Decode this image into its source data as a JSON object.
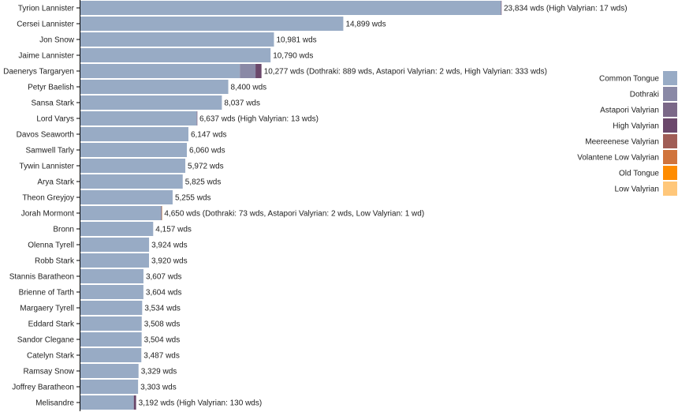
{
  "chart_data": {
    "type": "bar",
    "orientation": "horizontal",
    "stacked": true,
    "legend_position": "right",
    "unit_suffix": "wds",
    "xlim": [
      0,
      24800
    ],
    "categories": [
      "Tyrion Lannister",
      "Cersei Lannister",
      "Jon Snow",
      "Jaime Lannister",
      "Daenerys Targaryen",
      "Petyr Baelish",
      "Sansa Stark",
      "Lord Varys",
      "Davos Seaworth",
      "Samwell Tarly",
      "Tywin Lannister",
      "Arya Stark",
      "Theon Greyjoy",
      "Jorah Mormont",
      "Bronn",
      "Olenna Tyrell",
      "Robb Stark",
      "Stannis Baratheon",
      "Brienne of Tarth",
      "Margaery Tyrell",
      "Eddard Stark",
      "Sandor Clegane",
      "Catelyn Stark",
      "Ramsay Snow",
      "Joffrey Baratheon",
      "Melisandre"
    ],
    "series": [
      {
        "name": "Common Tongue",
        "color": "#98abc5",
        "values": [
          23817,
          14899,
          10981,
          10790,
          9053,
          8400,
          8037,
          6624,
          6147,
          6060,
          5972,
          5825,
          5255,
          4574,
          4157,
          3924,
          3920,
          3607,
          3604,
          3534,
          3508,
          3504,
          3487,
          3329,
          3303,
          3062
        ]
      },
      {
        "name": "Dothraki",
        "color": "#8a89a6",
        "values": [
          0,
          0,
          0,
          0,
          889,
          0,
          0,
          0,
          0,
          0,
          0,
          0,
          0,
          73,
          0,
          0,
          0,
          0,
          0,
          0,
          0,
          0,
          0,
          0,
          0,
          0
        ]
      },
      {
        "name": "Astapori Valyrian",
        "color": "#7b6888",
        "values": [
          0,
          0,
          0,
          0,
          2,
          0,
          0,
          0,
          0,
          0,
          0,
          0,
          0,
          2,
          0,
          0,
          0,
          0,
          0,
          0,
          0,
          0,
          0,
          0,
          0,
          0
        ]
      },
      {
        "name": "High Valyrian",
        "color": "#6b486b",
        "values": [
          17,
          0,
          0,
          0,
          333,
          0,
          0,
          13,
          0,
          0,
          0,
          0,
          0,
          0,
          0,
          0,
          0,
          0,
          0,
          0,
          0,
          0,
          0,
          0,
          0,
          130
        ]
      },
      {
        "name": "Meereenese Valyrian",
        "color": "#a05d56",
        "values": [
          0,
          0,
          0,
          0,
          0,
          0,
          0,
          0,
          0,
          0,
          0,
          0,
          0,
          0,
          0,
          0,
          0,
          0,
          0,
          0,
          0,
          0,
          0,
          0,
          0,
          0
        ]
      },
      {
        "name": "Volantene Low Valyrian",
        "color": "#d0743c",
        "values": [
          0,
          0,
          0,
          0,
          0,
          0,
          0,
          0,
          0,
          0,
          0,
          0,
          0,
          0,
          0,
          0,
          0,
          0,
          0,
          0,
          0,
          0,
          0,
          0,
          0,
          0
        ]
      },
      {
        "name": "Old Tongue",
        "color": "#ff8c00",
        "values": [
          0,
          0,
          0,
          0,
          0,
          0,
          0,
          0,
          0,
          0,
          0,
          0,
          0,
          0,
          0,
          0,
          0,
          0,
          0,
          0,
          0,
          0,
          0,
          0,
          0,
          0
        ]
      },
      {
        "name": "Low Valyrian",
        "color": "#ffc77a",
        "values": [
          0,
          0,
          0,
          0,
          0,
          0,
          0,
          0,
          0,
          0,
          0,
          0,
          0,
          1,
          0,
          0,
          0,
          0,
          0,
          0,
          0,
          0,
          0,
          0,
          0,
          0
        ]
      }
    ],
    "data_labels": [
      "23,834 wds (High Valyrian: 17 wds)",
      "14,899 wds",
      "10,981 wds",
      "10,790 wds",
      "10,277 wds (Dothraki: 889 wds, Astapori Valyrian: 2 wds, High Valyrian: 333 wds)",
      "8,400 wds",
      "8,037 wds",
      "6,637 wds (High Valyrian: 13 wds)",
      "6,147 wds",
      "6,060 wds",
      "5,972 wds",
      "5,825 wds",
      "5,255 wds",
      "4,650 wds (Dothraki: 73 wds, Astapori Valyrian: 2 wds, Low Valyrian: 1 wd)",
      "4,157 wds",
      "3,924 wds",
      "3,920 wds",
      "3,607 wds",
      "3,604 wds",
      "3,534 wds",
      "3,508 wds",
      "3,504 wds",
      "3,487 wds",
      "3,329 wds",
      "3,303 wds",
      "3,192 wds (High Valyrian: 130 wds)"
    ]
  }
}
